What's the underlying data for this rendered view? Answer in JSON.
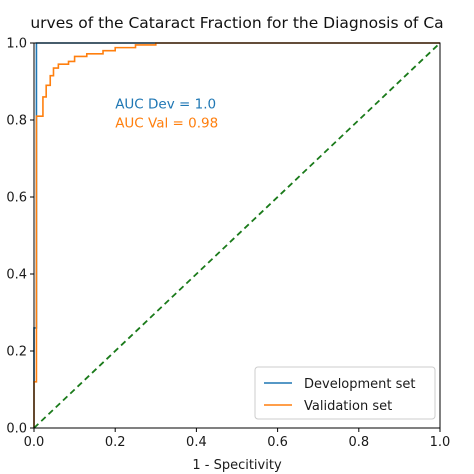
{
  "chart_data": {
    "type": "line",
    "title": "urves of the Cataract Fraction for the Diagnosis of Ca",
    "xlabel": "1 - Specitivity",
    "ylabel": "",
    "xlim": [
      0.0,
      1.0
    ],
    "ylim": [
      0.0,
      1.0
    ],
    "x_ticks": [
      "0.0",
      "0.2",
      "0.4",
      "0.6",
      "0.8",
      "1.0"
    ],
    "y_ticks": [
      "0.0",
      "0.2",
      "0.4",
      "0.6",
      "0.8",
      "1.0"
    ],
    "grid": false,
    "legend_position": "lower-right",
    "series": [
      {
        "name": "Development set",
        "color": "#1f77b4",
        "points": [
          [
            0.0,
            0.0
          ],
          [
            0.0,
            0.26
          ],
          [
            0.006,
            0.26
          ],
          [
            0.006,
            1.0
          ],
          [
            0.5,
            1.0
          ],
          [
            1.0,
            1.0
          ]
        ]
      },
      {
        "name": "Validation set",
        "color": "#ff7f0e",
        "points": [
          [
            0.0,
            0.0
          ],
          [
            0.0,
            0.12
          ],
          [
            0.006,
            0.12
          ],
          [
            0.006,
            0.81
          ],
          [
            0.022,
            0.81
          ],
          [
            0.022,
            0.86
          ],
          [
            0.03,
            0.86
          ],
          [
            0.03,
            0.89
          ],
          [
            0.04,
            0.89
          ],
          [
            0.04,
            0.915
          ],
          [
            0.048,
            0.915
          ],
          [
            0.048,
            0.935
          ],
          [
            0.06,
            0.935
          ],
          [
            0.06,
            0.945
          ],
          [
            0.085,
            0.945
          ],
          [
            0.085,
            0.952
          ],
          [
            0.1,
            0.952
          ],
          [
            0.1,
            0.965
          ],
          [
            0.13,
            0.965
          ],
          [
            0.13,
            0.972
          ],
          [
            0.17,
            0.972
          ],
          [
            0.17,
            0.98
          ],
          [
            0.2,
            0.98
          ],
          [
            0.2,
            0.988
          ],
          [
            0.25,
            0.988
          ],
          [
            0.25,
            0.995
          ],
          [
            0.3,
            0.995
          ],
          [
            0.3,
            1.0
          ],
          [
            1.0,
            1.0
          ]
        ]
      },
      {
        "name": "",
        "color": "#1a7a1a",
        "style": "dashed",
        "points": [
          [
            0.0,
            0.0
          ],
          [
            1.0,
            1.0
          ]
        ]
      }
    ],
    "annotations": [
      {
        "text": "AUC Dev = 1.0",
        "color": "#1f77b4",
        "x": 0.2,
        "y": 0.83
      },
      {
        "text": "AUC Val = 0.98",
        "color": "#ff7f0e",
        "x": 0.2,
        "y": 0.78
      }
    ]
  }
}
